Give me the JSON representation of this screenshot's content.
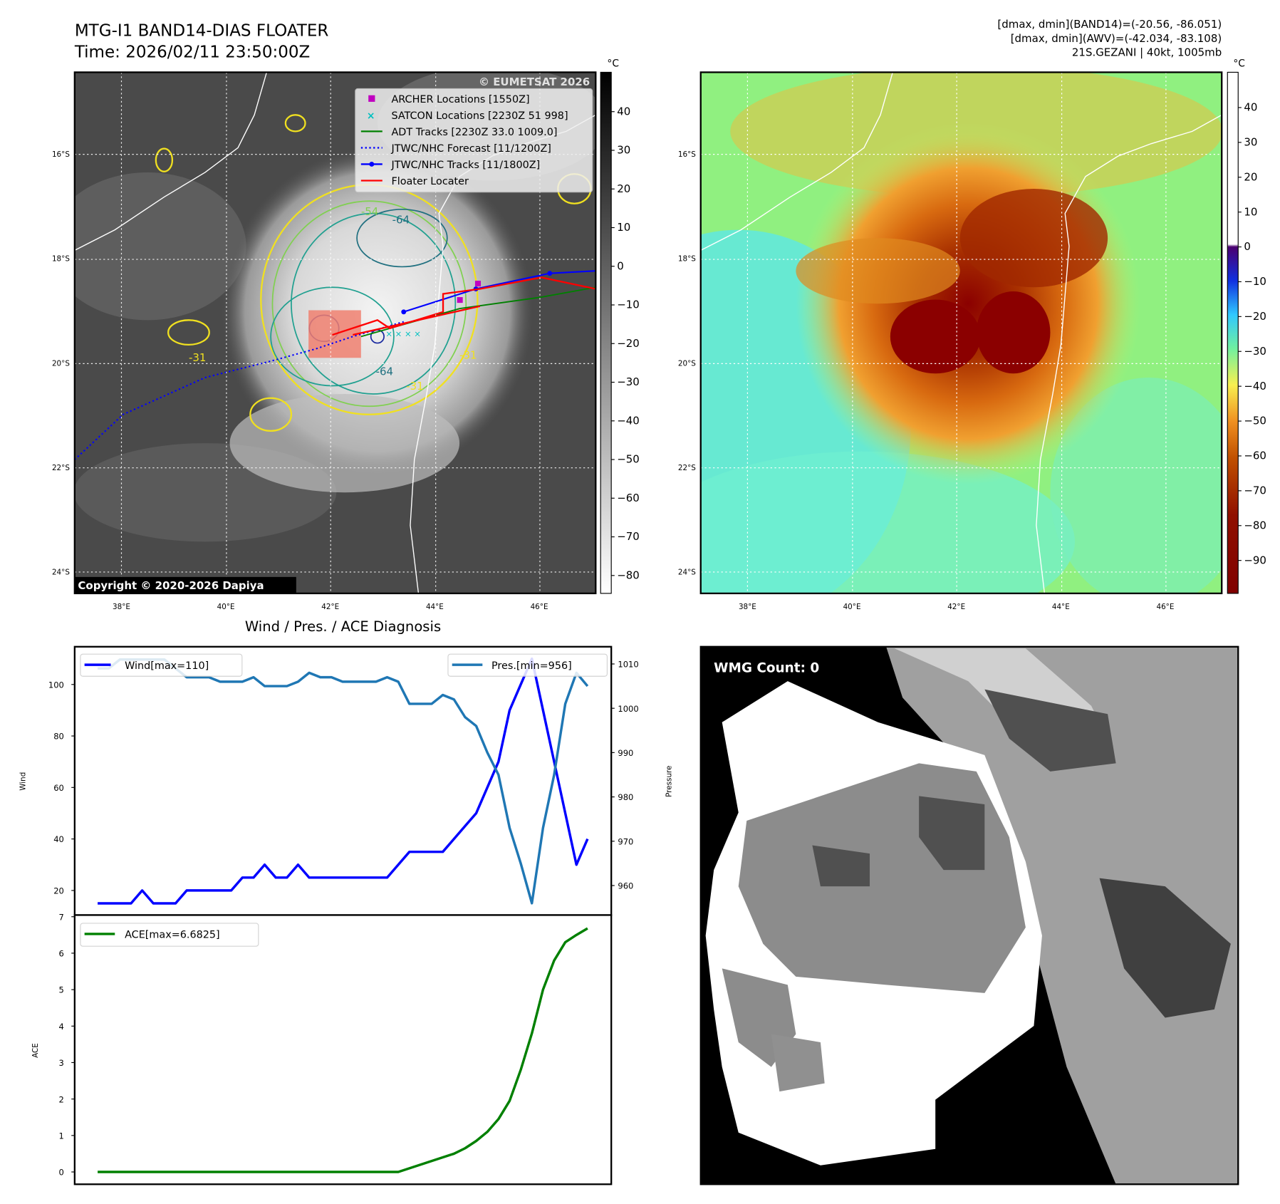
{
  "header": {
    "title_line1": "MTG-I1 BAND14-DIAS FLOATER",
    "title_line2": "Time: 2026/02/11 23:50:00Z",
    "info_line1": "[dmax, dmin](BAND14)=(-20.56, -86.051)",
    "info_line2": "[dmax, dmin](AWV)=(-42.034, -83.108)",
    "info_line3": "21S.GEZANI | 40kt, 1005mb"
  },
  "maps": {
    "lat_labels": [
      "16°S",
      "18°S",
      "20°S",
      "22°S",
      "24°S"
    ],
    "lon_labels": [
      "38°E",
      "40°E",
      "42°E",
      "44°E",
      "46°E"
    ],
    "contour_labels": [
      "-64",
      "-54",
      "-31",
      "-64",
      "-31",
      "-31"
    ],
    "watermark": "© EUMETSAT 2026",
    "copyright": "Copyright © 2020-2026 Dapiya",
    "legend": [
      {
        "label": "ARCHER Locations [1550Z]",
        "color": "#c000c0",
        "marker": "square"
      },
      {
        "label": "SATCON Locations [2230Z 51 998]",
        "color": "#00c0c0",
        "marker": "x"
      },
      {
        "label": "ADT Tracks [2230Z 33.0 1009.0]",
        "color": "#008000",
        "marker": "line"
      },
      {
        "label": "JTWC/NHC Forecast [11/1200Z]",
        "color": "#0000ff",
        "marker": "dotted"
      },
      {
        "label": "JTWC/NHC Tracks [11/1800Z]",
        "color": "#0000ff",
        "marker": "line-dot"
      },
      {
        "label": "Floater Locater",
        "color": "#ff0000",
        "marker": "line"
      }
    ],
    "colorbar_left": {
      "unit": "°C",
      "ticks": [
        "40",
        "30",
        "20",
        "10",
        "0",
        "−10",
        "−20",
        "−30",
        "−40",
        "−50",
        "−60",
        "−70",
        "−80"
      ]
    },
    "colorbar_right": {
      "unit": "°C",
      "ticks": [
        "40",
        "30",
        "20",
        "10",
        "0",
        "−10",
        "−20",
        "−30",
        "−40",
        "−50",
        "−60",
        "−70",
        "−80",
        "−90"
      ]
    }
  },
  "wmg": {
    "label": "WMG Count: 0"
  },
  "chart_data": [
    {
      "type": "line",
      "title": "Wind / Pres. / ACE Diagnosis",
      "ylabel": "Wind",
      "y2label": "Pressure",
      "ylim": [
        15,
        113
      ],
      "y2lim": [
        955,
        1012
      ],
      "yticks": [
        "20",
        "40",
        "60",
        "80",
        "100"
      ],
      "y2ticks": [
        "960",
        "970",
        "980",
        "990",
        "1000",
        "1010"
      ],
      "series": [
        {
          "name": "Wind[max=110]",
          "color": "#0000ff",
          "axis": "left",
          "values": [
            15,
            15,
            15,
            15,
            20,
            15,
            15,
            15,
            20,
            20,
            20,
            20,
            20,
            25,
            25,
            30,
            25,
            25,
            30,
            25,
            25,
            25,
            25,
            25,
            25,
            25,
            25,
            30,
            35,
            35,
            35,
            35,
            40,
            45,
            50,
            60,
            70,
            90,
            100,
            110,
            90,
            70,
            50,
            30,
            40
          ]
        },
        {
          "name": "Pres.[min=956]",
          "color": "#1f77b4",
          "axis": "right",
          "values": [
            1009,
            1009,
            1011,
            1011,
            1011,
            1011,
            1011,
            1009,
            1007,
            1007,
            1007,
            1006,
            1006,
            1006,
            1007,
            1005,
            1005,
            1005,
            1006,
            1008,
            1007,
            1007,
            1006,
            1006,
            1006,
            1006,
            1007,
            1006,
            1001,
            1001,
            1001,
            1003,
            1002,
            998,
            996,
            990,
            985,
            973,
            965,
            956,
            973,
            985,
            1001,
            1008,
            1005
          ]
        }
      ]
    },
    {
      "type": "line",
      "ylabel": "ACE",
      "ylim": [
        -0.3,
        7
      ],
      "yticks": [
        "0",
        "1",
        "2",
        "3",
        "4",
        "5",
        "6",
        "7"
      ],
      "series": [
        {
          "name": "ACE[max=6.6825]",
          "color": "#008000",
          "values": [
            0,
            0,
            0,
            0,
            0,
            0,
            0,
            0,
            0,
            0,
            0,
            0,
            0,
            0,
            0,
            0,
            0,
            0,
            0,
            0,
            0,
            0,
            0,
            0,
            0,
            0,
            0,
            0,
            0.1,
            0.2,
            0.3,
            0.4,
            0.5,
            0.65,
            0.85,
            1.1,
            1.45,
            1.95,
            2.8,
            3.8,
            5.0,
            5.8,
            6.3,
            6.5,
            6.68
          ]
        }
      ]
    }
  ]
}
